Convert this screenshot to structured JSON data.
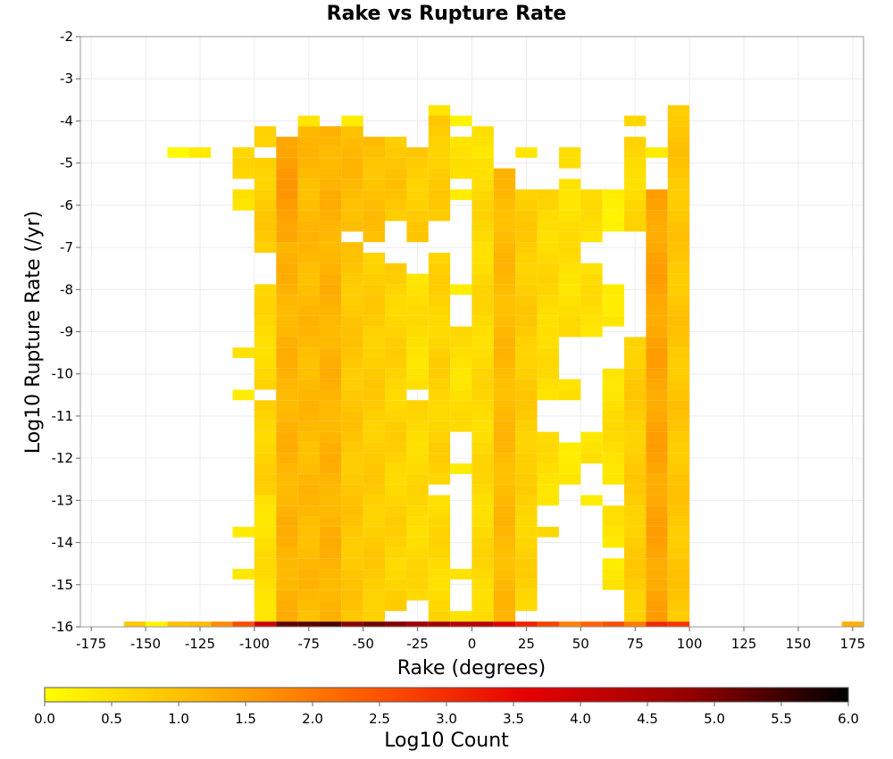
{
  "chart_data": {
    "type": "heatmap",
    "title": "Rake vs Rupture Rate",
    "xlabel": "Rake (degrees)",
    "ylabel": "Log10 Rupture Rate (/yr)",
    "xlim": [
      -180,
      180
    ],
    "ylim": [
      -16,
      -2
    ],
    "x_ticks": [
      "-175",
      "-150",
      "-125",
      "-100",
      "-75",
      "-50",
      "-25",
      "0",
      "25",
      "50",
      "75",
      "100",
      "125",
      "150",
      "175"
    ],
    "y_ticks": [
      "-2",
      "-3",
      "-4",
      "-5",
      "-6",
      "-7",
      "-8",
      "-9",
      "-10",
      "-11",
      "-12",
      "-13",
      "-14",
      "-15",
      "-16"
    ],
    "grid": true,
    "bin_width_x": 10,
    "bin_height_y": 0.25,
    "colorbar": {
      "label": "Log10 Count",
      "min": 0.0,
      "max": 6.0,
      "ticks": [
        "0.0",
        "0.5",
        "1.0",
        "1.5",
        "2.0",
        "2.5",
        "3.0",
        "3.5",
        "4.0",
        "4.5",
        "5.0",
        "5.5",
        "6.0"
      ],
      "colors": [
        "#ffff00",
        "#ffb400",
        "#ff5a00",
        "#e60000",
        "#960000",
        "#000000"
      ]
    },
    "columns": [
      {
        "x": -155,
        "ranges": [
          [
            -16,
            -16,
            0.9
          ]
        ]
      },
      {
        "x": -145,
        "ranges": [
          [
            -16,
            -16,
            0.2
          ]
        ]
      },
      {
        "x": -135,
        "ranges": [
          [
            -16,
            -16,
            0.9
          ],
          [
            -4.75,
            -4.75,
            0.2
          ]
        ]
      },
      {
        "x": -125,
        "ranges": [
          [
            -16,
            -16,
            1.2
          ],
          [
            -4.75,
            -4.75,
            0.2
          ]
        ]
      },
      {
        "x": -115,
        "ranges": [
          [
            -16,
            -16,
            1.6
          ]
        ]
      },
      {
        "x": -105,
        "ranges": [
          [
            -16,
            -16,
            2.6
          ],
          [
            -10.5,
            -10.5,
            0.4
          ],
          [
            -9.5,
            -9.5,
            0.4
          ],
          [
            -6,
            -5.75,
            0.5
          ],
          [
            -5.25,
            -5.25,
            0.5
          ],
          [
            -5,
            -4.75,
            0.6
          ],
          [
            -13.75,
            -13.75,
            0.3
          ],
          [
            -14.75,
            -14.75,
            0.4
          ]
        ]
      },
      {
        "x": -95,
        "ranges": [
          [
            -16,
            -16,
            4.0
          ],
          [
            -15.75,
            -13,
            0.5
          ],
          [
            -12.75,
            -10.75,
            0.7
          ],
          [
            -10.25,
            -8,
            0.6
          ],
          [
            -7,
            -5,
            0.8
          ],
          [
            -4.5,
            -4.25,
            0.6
          ]
        ]
      },
      {
        "x": -85,
        "ranges": [
          [
            -16,
            -16,
            5.2
          ],
          [
            -15.75,
            -7,
            1.2
          ],
          [
            -6.75,
            -4.5,
            1.5
          ]
        ]
      },
      {
        "x": -75,
        "ranges": [
          [
            -16,
            -16,
            5.4
          ],
          [
            -15.75,
            -4.25,
            1.1
          ],
          [
            -4,
            -4,
            0.5
          ]
        ]
      },
      {
        "x": -65,
        "ranges": [
          [
            -16,
            -16,
            5.3
          ],
          [
            -15.75,
            -4.25,
            1.2
          ]
        ]
      },
      {
        "x": -55,
        "ranges": [
          [
            -16,
            -16,
            5.0
          ],
          [
            -15.75,
            -7,
            0.9
          ],
          [
            -6.5,
            -4.25,
            1.1
          ],
          [
            -4,
            -4,
            0.4
          ]
        ]
      },
      {
        "x": -45,
        "ranges": [
          [
            -16,
            -16,
            5.1
          ],
          [
            -15.75,
            -7.25,
            0.8
          ],
          [
            -6.75,
            -4.5,
            1.0
          ]
        ]
      },
      {
        "x": -35,
        "ranges": [
          [
            -16,
            -16,
            4.9
          ],
          [
            -15.5,
            -7.5,
            0.7
          ],
          [
            -6.25,
            -4.5,
            0.9
          ]
        ]
      },
      {
        "x": -25,
        "ranges": [
          [
            -16,
            -16,
            4.7
          ],
          [
            -15.25,
            -10.75,
            0.6
          ],
          [
            -10.25,
            -7.75,
            0.5
          ],
          [
            -6.75,
            -4.75,
            0.8
          ]
        ]
      },
      {
        "x": -15,
        "ranges": [
          [
            -16,
            -16,
            4.5
          ],
          [
            -15.75,
            -13,
            0.6
          ],
          [
            -12.5,
            -7.25,
            0.7
          ],
          [
            -6.25,
            -4,
            0.8
          ],
          [
            -3.75,
            -3.75,
            0.3
          ]
        ]
      },
      {
        "x": -5,
        "ranges": [
          [
            -16,
            -16,
            4.4
          ],
          [
            -15.75,
            -15.75,
            0.5
          ],
          [
            -14.75,
            -14.75,
            0.4
          ],
          [
            -12.25,
            -12.25,
            0.4
          ],
          [
            -11.25,
            -9,
            0.5
          ],
          [
            -8,
            -8,
            0.4
          ],
          [
            -5.75,
            -5.75,
            0.4
          ],
          [
            -5.25,
            -4.5,
            0.4
          ],
          [
            -4,
            -4,
            0.3
          ]
        ]
      },
      {
        "x": 5,
        "ranges": [
          [
            -16,
            -16,
            4.2
          ],
          [
            -15.75,
            -5,
            0.6
          ],
          [
            -4.75,
            -4.25,
            0.4
          ]
        ]
      },
      {
        "x": 15,
        "ranges": [
          [
            -16,
            -16,
            3.8
          ],
          [
            -15.75,
            -5.25,
            1.1
          ]
        ]
      },
      {
        "x": 25,
        "ranges": [
          [
            -16,
            -16,
            3.2
          ],
          [
            -15.5,
            -12.25,
            0.7
          ],
          [
            -12,
            -5.75,
            0.8
          ],
          [
            -4.75,
            -4.75,
            0.3
          ]
        ]
      },
      {
        "x": 35,
        "ranges": [
          [
            -16,
            -16,
            2.6
          ],
          [
            -13.75,
            -13.75,
            0.5
          ],
          [
            -13,
            -11.5,
            0.5
          ],
          [
            -10.5,
            -9.25,
            0.5
          ],
          [
            -9,
            -5.75,
            0.6
          ]
        ]
      },
      {
        "x": 45,
        "ranges": [
          [
            -16,
            -16,
            2.0
          ],
          [
            -12.5,
            -11.75,
            0.4
          ],
          [
            -10.5,
            -10.25,
            0.5
          ],
          [
            -9,
            -5.5,
            0.5
          ],
          [
            -5,
            -4.75,
            0.4
          ]
        ]
      },
      {
        "x": 55,
        "ranges": [
          [
            -16,
            -16,
            2.2
          ],
          [
            -13,
            -13,
            0.4
          ],
          [
            -12,
            -11.5,
            0.4
          ],
          [
            -9,
            -7.5,
            0.5
          ],
          [
            -6.75,
            -5.75,
            0.5
          ]
        ]
      },
      {
        "x": 65,
        "ranges": [
          [
            -16,
            -16,
            2.6
          ],
          [
            -15,
            -14.5,
            0.4
          ],
          [
            -14,
            -13.25,
            0.4
          ],
          [
            -12.5,
            -10,
            0.5
          ],
          [
            -8.75,
            -8,
            0.4
          ],
          [
            -6.5,
            -5.75,
            0.3
          ]
        ]
      },
      {
        "x": 75,
        "ranges": [
          [
            -16,
            -16,
            2.0
          ],
          [
            -15.75,
            -9.25,
            0.8
          ],
          [
            -6.5,
            -4.5,
            0.6
          ],
          [
            -4,
            -4,
            0.6
          ]
        ]
      },
      {
        "x": 85,
        "ranges": [
          [
            -16,
            -16,
            3.0
          ],
          [
            -15.75,
            -5.75,
            1.4
          ],
          [
            -4.75,
            -4.75,
            0.4
          ]
        ]
      },
      {
        "x": 95,
        "ranges": [
          [
            -16,
            -16,
            3.0
          ],
          [
            -15.75,
            -3.75,
            0.9
          ]
        ]
      },
      {
        "x": 175,
        "ranges": [
          [
            -16,
            -16,
            1.2
          ]
        ]
      }
    ]
  }
}
